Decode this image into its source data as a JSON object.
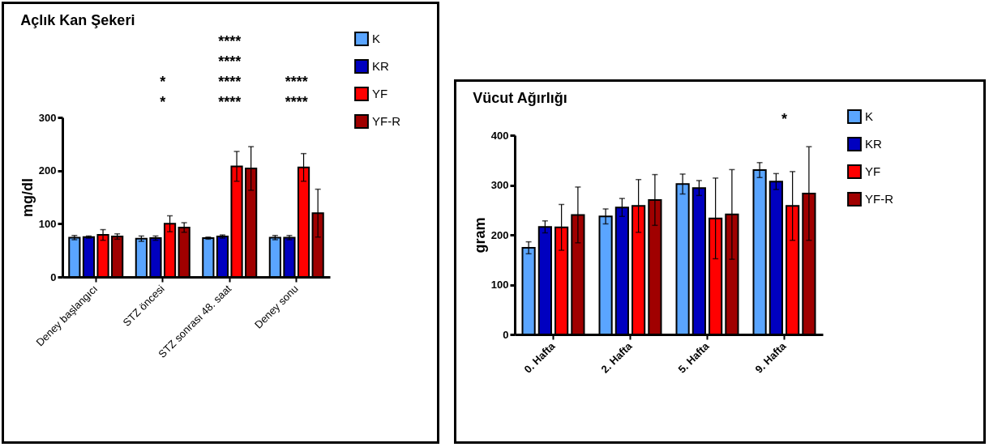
{
  "chart_data": [
    {
      "type": "bar",
      "title": "Açlık Kan Şekeri",
      "ylabel": "mg/dl",
      "categories": [
        "Deney başlangıcı",
        "STZ öncesi",
        "STZ sonrası 48. saat",
        "Deney sonu"
      ],
      "ylim": [
        0,
        300
      ],
      "yticks": [
        0,
        100,
        200,
        300
      ],
      "legend": "right",
      "grid": false,
      "series": [
        {
          "name": "K",
          "color": "#5aa5ff",
          "values": [
            74,
            72,
            73,
            74
          ],
          "errors": [
            4,
            5,
            2,
            4
          ]
        },
        {
          "name": "KR",
          "color": "#0000c0",
          "values": [
            75,
            73,
            76,
            74
          ],
          "errors": [
            2,
            4,
            3,
            4
          ]
        },
        {
          "name": "YF",
          "color": "#ff0000",
          "values": [
            79,
            100,
            208,
            206
          ],
          "errors": [
            10,
            15,
            28,
            26
          ]
        },
        {
          "name": "YF-R",
          "color": "#a00000",
          "values": [
            76,
            93,
            204,
            120
          ],
          "errors": [
            5,
            9,
            41,
            45
          ]
        }
      ],
      "annotations": [
        "*",
        "*",
        "****",
        "****",
        "****",
        "****",
        "****",
        "****"
      ]
    },
    {
      "type": "bar",
      "title": "Vücut Ağırlığı",
      "ylabel": "gram",
      "categories": [
        "0. Hafta",
        "2. Hafta",
        "5. Hafta",
        "9. Hafta"
      ],
      "ylim": [
        0,
        400
      ],
      "yticks": [
        0,
        100,
        200,
        300,
        400
      ],
      "legend": "right",
      "grid": false,
      "series": [
        {
          "name": "K",
          "color": "#5aa5ff",
          "values": [
            174,
            237,
            302,
            330
          ],
          "errors": [
            12,
            15,
            20,
            15
          ]
        },
        {
          "name": "KR",
          "color": "#0000c0",
          "values": [
            216,
            255,
            294,
            307
          ],
          "errors": [
            12,
            18,
            15,
            16
          ]
        },
        {
          "name": "YF",
          "color": "#ff0000",
          "values": [
            215,
            258,
            233,
            258
          ],
          "errors": [
            46,
            53,
            81,
            69
          ]
        },
        {
          "name": "YF-R",
          "color": "#a00000",
          "values": [
            240,
            270,
            241,
            283
          ],
          "errors": [
            56,
            51,
            90,
            94
          ]
        }
      ],
      "annotations": [
        "*"
      ]
    }
  ]
}
